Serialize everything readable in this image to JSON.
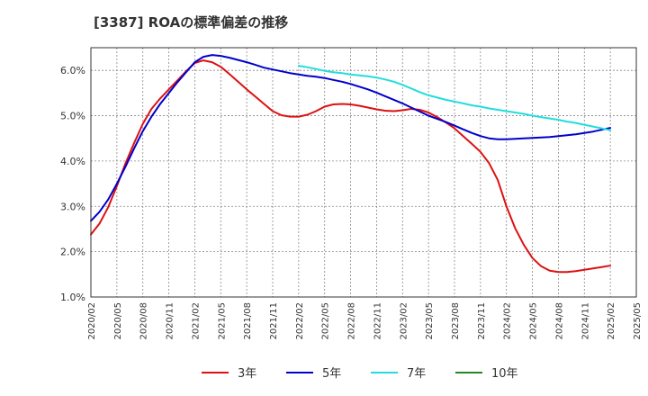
{
  "chart_data": {
    "type": "line",
    "title": "[3387]  ROAの標準偏差の推移",
    "xlabel": "",
    "ylabel": "",
    "ylim": [
      1.0,
      6.5
    ],
    "yticks": [
      "1.0%",
      "2.0%",
      "3.0%",
      "4.0%",
      "5.0%",
      "6.0%"
    ],
    "ytick_values": [
      1.0,
      2.0,
      3.0,
      4.0,
      5.0,
      6.0
    ],
    "xticks": [
      "2020/02",
      "2020/05",
      "2020/08",
      "2020/11",
      "2021/02",
      "2021/05",
      "2021/08",
      "2021/11",
      "2022/02",
      "2022/05",
      "2022/08",
      "2022/11",
      "2023/02",
      "2023/05",
      "2023/08",
      "2023/11",
      "2024/02",
      "2024/05",
      "2024/08",
      "2024/11",
      "2025/02",
      "2025/05"
    ],
    "grid": true,
    "legend": "bottom",
    "series": [
      {
        "name": "3年",
        "color": "#dd1111",
        "points": [
          [
            "2020/02",
            2.38
          ],
          [
            "2020/03",
            2.62
          ],
          [
            "2020/04",
            2.98
          ],
          [
            "2020/05",
            3.45
          ],
          [
            "2020/06",
            3.95
          ],
          [
            "2020/07",
            4.4
          ],
          [
            "2020/08",
            4.82
          ],
          [
            "2020/09",
            5.15
          ],
          [
            "2020/10",
            5.38
          ],
          [
            "2020/11",
            5.58
          ],
          [
            "2020/12",
            5.78
          ],
          [
            "2021/01",
            5.98
          ],
          [
            "2021/02",
            6.16
          ],
          [
            "2021/03",
            6.22
          ],
          [
            "2021/04",
            6.18
          ],
          [
            "2021/05",
            6.08
          ],
          [
            "2021/06",
            5.92
          ],
          [
            "2021/07",
            5.75
          ],
          [
            "2021/08",
            5.58
          ],
          [
            "2021/09",
            5.42
          ],
          [
            "2021/10",
            5.26
          ],
          [
            "2021/11",
            5.1
          ],
          [
            "2021/12",
            5.01
          ],
          [
            "2022/01",
            4.98
          ],
          [
            "2022/02",
            4.98
          ],
          [
            "2022/03",
            5.02
          ],
          [
            "2022/04",
            5.1
          ],
          [
            "2022/05",
            5.2
          ],
          [
            "2022/06",
            5.25
          ],
          [
            "2022/07",
            5.26
          ],
          [
            "2022/08",
            5.25
          ],
          [
            "2022/09",
            5.22
          ],
          [
            "2022/10",
            5.18
          ],
          [
            "2022/11",
            5.14
          ],
          [
            "2022/12",
            5.11
          ],
          [
            "2023/01",
            5.1
          ],
          [
            "2023/02",
            5.12
          ],
          [
            "2023/03",
            5.15
          ],
          [
            "2023/04",
            5.13
          ],
          [
            "2023/05",
            5.07
          ],
          [
            "2023/06",
            4.97
          ],
          [
            "2023/07",
            4.85
          ],
          [
            "2023/08",
            4.72
          ],
          [
            "2023/09",
            4.55
          ],
          [
            "2023/10",
            4.38
          ],
          [
            "2023/11",
            4.2
          ],
          [
            "2023/12",
            3.95
          ],
          [
            "2024/01",
            3.58
          ],
          [
            "2024/02",
            3.0
          ],
          [
            "2024/03",
            2.52
          ],
          [
            "2024/04",
            2.15
          ],
          [
            "2024/05",
            1.86
          ],
          [
            "2024/06",
            1.68
          ],
          [
            "2024/07",
            1.58
          ],
          [
            "2024/08",
            1.55
          ],
          [
            "2024/09",
            1.55
          ],
          [
            "2024/10",
            1.57
          ],
          [
            "2024/11",
            1.6
          ],
          [
            "2024/12",
            1.63
          ],
          [
            "2025/01",
            1.66
          ],
          [
            "2025/02",
            1.69
          ]
        ]
      },
      {
        "name": "5年",
        "color": "#0000cc",
        "points": [
          [
            "2020/02",
            2.68
          ],
          [
            "2020/03",
            2.88
          ],
          [
            "2020/04",
            3.15
          ],
          [
            "2020/05",
            3.5
          ],
          [
            "2020/06",
            3.88
          ],
          [
            "2020/07",
            4.28
          ],
          [
            "2020/08",
            4.66
          ],
          [
            "2020/09",
            4.98
          ],
          [
            "2020/10",
            5.26
          ],
          [
            "2020/11",
            5.5
          ],
          [
            "2020/12",
            5.74
          ],
          [
            "2021/01",
            5.96
          ],
          [
            "2021/02",
            6.18
          ],
          [
            "2021/03",
            6.3
          ],
          [
            "2021/04",
            6.34
          ],
          [
            "2021/05",
            6.32
          ],
          [
            "2021/06",
            6.28
          ],
          [
            "2021/07",
            6.23
          ],
          [
            "2021/08",
            6.18
          ],
          [
            "2021/09",
            6.12
          ],
          [
            "2021/10",
            6.06
          ],
          [
            "2021/11",
            6.02
          ],
          [
            "2021/12",
            5.98
          ],
          [
            "2022/01",
            5.94
          ],
          [
            "2022/02",
            5.91
          ],
          [
            "2022/03",
            5.88
          ],
          [
            "2022/04",
            5.86
          ],
          [
            "2022/05",
            5.83
          ],
          [
            "2022/06",
            5.79
          ],
          [
            "2022/07",
            5.75
          ],
          [
            "2022/08",
            5.7
          ],
          [
            "2022/09",
            5.64
          ],
          [
            "2022/10",
            5.58
          ],
          [
            "2022/11",
            5.51
          ],
          [
            "2022/12",
            5.43
          ],
          [
            "2023/01",
            5.35
          ],
          [
            "2023/02",
            5.27
          ],
          [
            "2023/03",
            5.18
          ],
          [
            "2023/04",
            5.09
          ],
          [
            "2023/05",
            5.0
          ],
          [
            "2023/06",
            4.93
          ],
          [
            "2023/07",
            4.86
          ],
          [
            "2023/08",
            4.78
          ],
          [
            "2023/09",
            4.7
          ],
          [
            "2023/10",
            4.62
          ],
          [
            "2023/11",
            4.55
          ],
          [
            "2023/12",
            4.5
          ],
          [
            "2024/01",
            4.48
          ],
          [
            "2024/02",
            4.48
          ],
          [
            "2024/03",
            4.49
          ],
          [
            "2024/04",
            4.5
          ],
          [
            "2024/05",
            4.51
          ],
          [
            "2024/06",
            4.52
          ],
          [
            "2024/07",
            4.53
          ],
          [
            "2024/08",
            4.55
          ],
          [
            "2024/09",
            4.57
          ],
          [
            "2024/10",
            4.59
          ],
          [
            "2024/11",
            4.62
          ],
          [
            "2024/12",
            4.65
          ],
          [
            "2025/01",
            4.69
          ],
          [
            "2025/02",
            4.73
          ]
        ]
      },
      {
        "name": "7年",
        "color": "#22dddd",
        "points": [
          [
            "2022/02",
            6.1
          ],
          [
            "2022/03",
            6.07
          ],
          [
            "2022/04",
            6.03
          ],
          [
            "2022/05",
            5.99
          ],
          [
            "2022/06",
            5.96
          ],
          [
            "2022/07",
            5.94
          ],
          [
            "2022/08",
            5.91
          ],
          [
            "2022/09",
            5.89
          ],
          [
            "2022/10",
            5.87
          ],
          [
            "2022/11",
            5.84
          ],
          [
            "2022/12",
            5.8
          ],
          [
            "2023/01",
            5.75
          ],
          [
            "2023/02",
            5.68
          ],
          [
            "2023/03",
            5.6
          ],
          [
            "2023/04",
            5.52
          ],
          [
            "2023/05",
            5.45
          ],
          [
            "2023/06",
            5.4
          ],
          [
            "2023/07",
            5.35
          ],
          [
            "2023/08",
            5.31
          ],
          [
            "2023/09",
            5.27
          ],
          [
            "2023/10",
            5.23
          ],
          [
            "2023/11",
            5.2
          ],
          [
            "2023/12",
            5.16
          ],
          [
            "2024/01",
            5.13
          ],
          [
            "2024/02",
            5.1
          ],
          [
            "2024/03",
            5.07
          ],
          [
            "2024/04",
            5.04
          ],
          [
            "2024/05",
            5.0
          ],
          [
            "2024/06",
            4.97
          ],
          [
            "2024/07",
            4.94
          ],
          [
            "2024/08",
            4.91
          ],
          [
            "2024/09",
            4.87
          ],
          [
            "2024/10",
            4.84
          ],
          [
            "2024/11",
            4.8
          ],
          [
            "2024/12",
            4.76
          ],
          [
            "2025/01",
            4.72
          ],
          [
            "2025/02",
            4.68
          ]
        ]
      },
      {
        "name": "10年",
        "color": "#228822",
        "points": []
      }
    ]
  }
}
